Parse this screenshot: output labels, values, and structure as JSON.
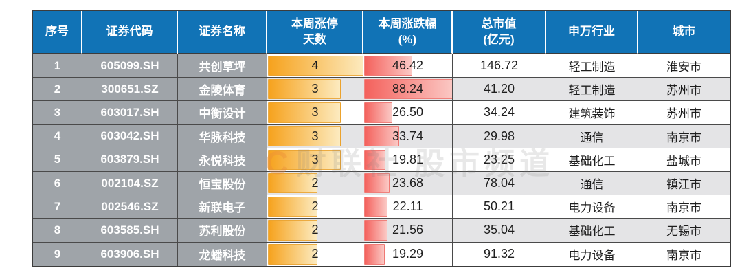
{
  "colors": {
    "header_bg": "#1173B6",
    "header_text": "#FFFFFF",
    "gray_cell_bg": "#9FA4A9",
    "row_white": "#FFFFFF",
    "row_shade": "#E4E4E6",
    "border": "#4A4A4A",
    "days_bar_start": "#F6A21D",
    "days_bar_end": "#FCEBC0",
    "pct_bar_start": "#F4615C",
    "pct_bar_end": "#FBC9C5"
  },
  "watermark": {
    "logo": "C",
    "text": "财联社 股市频道"
  },
  "chart_data": {
    "type": "table",
    "title": "",
    "columns": [
      "序号",
      "证券代码",
      "证券名称",
      "本周涨停天数",
      "本周涨跌幅(%)",
      "总市值(亿元)",
      "申万行业",
      "城市"
    ],
    "column_keys": [
      "index",
      "code",
      "name",
      "limit_up_days",
      "pct_change",
      "market_cap",
      "industry",
      "city"
    ],
    "header_display": [
      "序号",
      "证券代码",
      "证券名称",
      "本周涨停\n天数",
      "本周涨跌幅\n(%)",
      "总市值\n(亿元)",
      "申万行业",
      "城市"
    ],
    "bar_scales": {
      "limit_up_days_max": 4,
      "pct_change_max": 88.24
    },
    "rows": [
      {
        "index": "1",
        "code": "605099.SH",
        "name": "共创草坪",
        "limit_up_days": 4,
        "pct_change": 46.42,
        "market_cap": 146.72,
        "industry": "轻工制造",
        "city": "淮安市"
      },
      {
        "index": "2",
        "code": "300651.SZ",
        "name": "金陵体育",
        "limit_up_days": 3,
        "pct_change": 88.24,
        "market_cap": 41.2,
        "industry": "轻工制造",
        "city": "苏州市"
      },
      {
        "index": "3",
        "code": "603017.SH",
        "name": "中衡设计",
        "limit_up_days": 3,
        "pct_change": 26.5,
        "market_cap": 34.24,
        "industry": "建筑装饰",
        "city": "苏州市"
      },
      {
        "index": "4",
        "code": "603042.SH",
        "name": "华脉科技",
        "limit_up_days": 3,
        "pct_change": 33.74,
        "market_cap": 29.98,
        "industry": "通信",
        "city": "南京市"
      },
      {
        "index": "5",
        "code": "603879.SH",
        "name": "永悦科技",
        "limit_up_days": 3,
        "pct_change": 19.81,
        "market_cap": 23.25,
        "industry": "基础化工",
        "city": "盐城市"
      },
      {
        "index": "6",
        "code": "002104.SZ",
        "name": "恒宝股份",
        "limit_up_days": 2,
        "pct_change": 23.68,
        "market_cap": 78.04,
        "industry": "通信",
        "city": "镇江市"
      },
      {
        "index": "7",
        "code": "002546.SZ",
        "name": "新联电子",
        "limit_up_days": 2,
        "pct_change": 22.11,
        "market_cap": 50.21,
        "industry": "电力设备",
        "city": "南京市"
      },
      {
        "index": "8",
        "code": "603585.SH",
        "name": "苏利股份",
        "limit_up_days": 2,
        "pct_change": 21.56,
        "market_cap": 35.04,
        "industry": "基础化工",
        "city": "无锡市"
      },
      {
        "index": "9",
        "code": "603906.SH",
        "name": "龙蟠科技",
        "limit_up_days": 2,
        "pct_change": 19.29,
        "market_cap": 91.32,
        "industry": "电力设备",
        "city": "南京市"
      }
    ]
  }
}
